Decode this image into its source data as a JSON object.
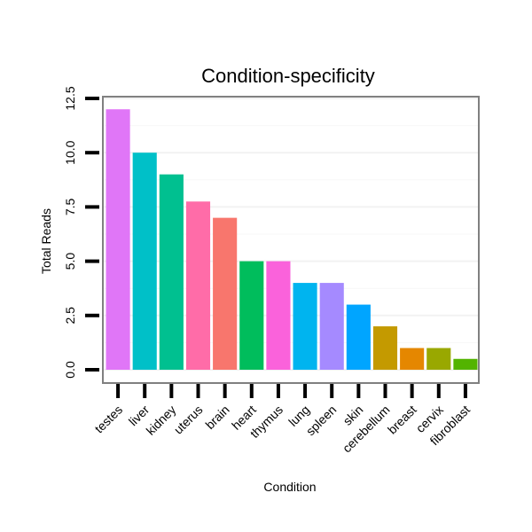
{
  "chart_data": {
    "type": "bar",
    "title": "Condition-specificity",
    "xlabel": "Condition",
    "ylabel": "Total Reads",
    "ylim": [
      0,
      12.5
    ],
    "yticks": [
      0.0,
      2.5,
      5.0,
      7.5,
      10.0,
      12.5
    ],
    "ytick_labels": [
      "0.0",
      "2.5",
      "5.0",
      "7.5",
      "10.0",
      "12.5"
    ],
    "grid": true,
    "legend": "none",
    "categories": [
      "testes",
      "liver",
      "kidney",
      "uterus",
      "brain",
      "heart",
      "thymus",
      "lung",
      "spleen",
      "skin",
      "cerebellum",
      "breast",
      "cervix",
      "fibroblast"
    ],
    "values": [
      12,
      10,
      9,
      7.75,
      7,
      5,
      5,
      4,
      4,
      3,
      2,
      1,
      1,
      0.5
    ],
    "colors": [
      "#E076F7",
      "#00C0C8",
      "#00C090",
      "#FF6CA8",
      "#F8766D",
      "#00BD5C",
      "#FA62DB",
      "#00B4EF",
      "#A58AFF",
      "#00A5FF",
      "#C49A00",
      "#E58700",
      "#99A800",
      "#53B400"
    ]
  }
}
